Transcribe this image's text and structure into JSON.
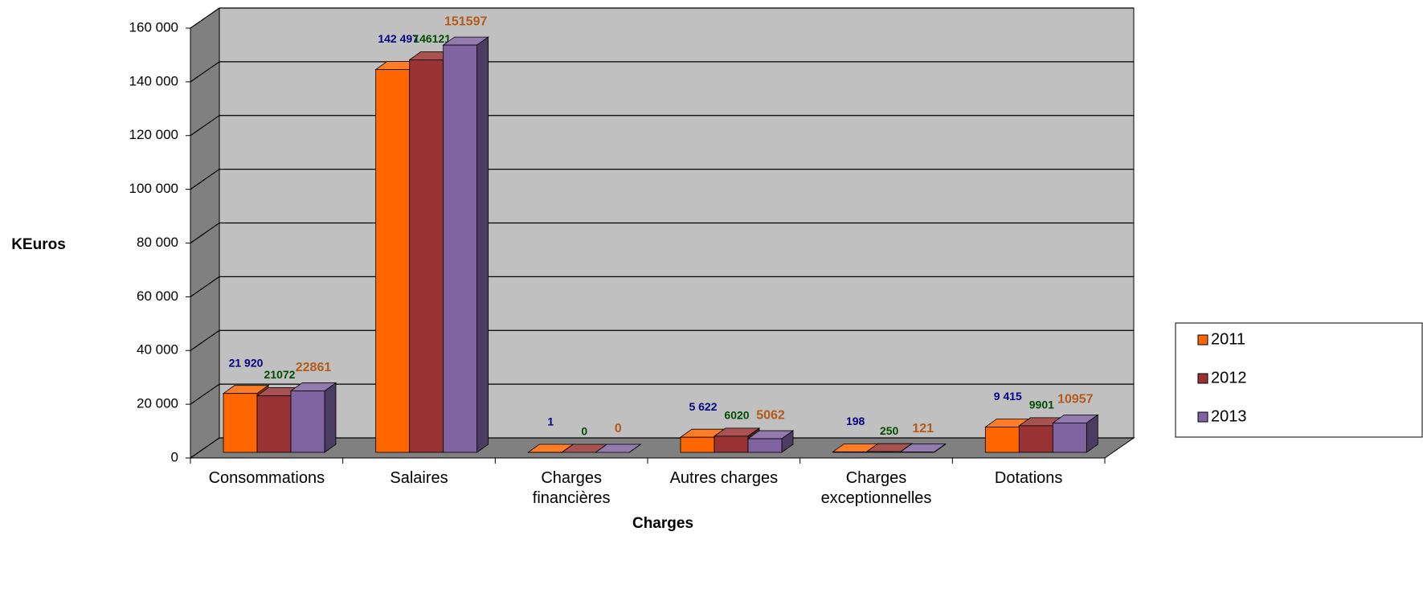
{
  "chart_data": {
    "type": "bar3d",
    "y_label": "KEuros",
    "x_label": "Charges",
    "categories": [
      "Consommations",
      "Salaires",
      "Charges financières",
      "Autres charges",
      "Charges exceptionnelles",
      "Dotations"
    ],
    "series": [
      {
        "name": "2011",
        "color": "#ff6600",
        "label_color": "#000080",
        "values": [
          21920,
          142497,
          1,
          5622,
          198,
          9415
        ],
        "value_labels": [
          "21 920",
          "142 497",
          "1",
          "5 622",
          "198",
          "9 415"
        ]
      },
      {
        "name": "2012",
        "color": "#993333",
        "label_color": "#004d00",
        "values": [
          21072,
          146121,
          0,
          6020,
          250,
          9901
        ]
      },
      {
        "name": "2013",
        "color": "#8064a2",
        "label_color": "#b35a1a",
        "values": [
          22861,
          151597,
          0,
          5062,
          121,
          10957
        ]
      }
    ],
    "ylim": [
      0,
      160000
    ],
    "yticks": [
      0,
      {
        "value": 20000,
        "label": "20 000"
      },
      {
        "value": 40000,
        "label": "40 000"
      },
      {
        "value": 60000,
        "label": "60 000"
      },
      {
        "value": 80000,
        "label": "80 000"
      },
      {
        "value": 100000,
        "label": "100 000"
      },
      {
        "value": 120000,
        "label": "120 000"
      },
      {
        "value": 140000,
        "label": "140 000"
      },
      {
        "value": 160000,
        "label": "160 000"
      }
    ],
    "grid": true,
    "legend": "right"
  }
}
